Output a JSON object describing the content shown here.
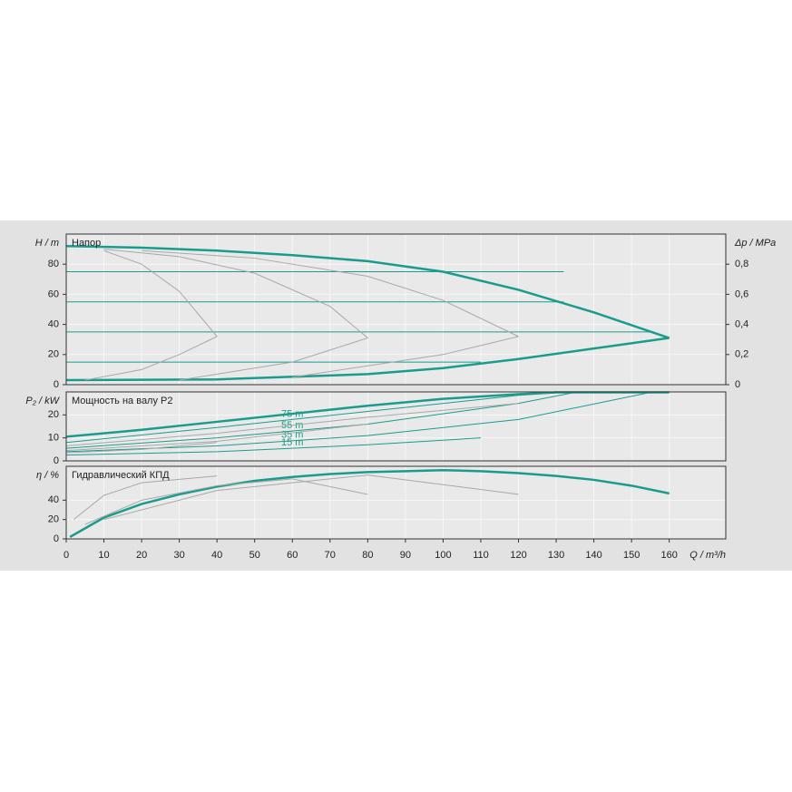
{
  "chart_data": [
    {
      "type": "line",
      "y_label": "H / m",
      "title": "Напор",
      "y2_label": "Δp / MPa",
      "ylim": [
        0,
        100
      ],
      "yticks": [
        0,
        20,
        40,
        60,
        80
      ],
      "y2lim": [
        0,
        1
      ],
      "y2ticks": [
        0,
        {
          "value": 0.2,
          "label": "0,2"
        },
        {
          "value": 0.4,
          "label": "0,4"
        },
        {
          "value": 0.6,
          "label": "0,6"
        },
        {
          "value": 0.8,
          "label": "0,8"
        }
      ],
      "grid": true,
      "series": [
        {
          "color": "#1a9c8c",
          "width": 2.5,
          "x": [
            0,
            20,
            40,
            60,
            80,
            100,
            120,
            140,
            160
          ],
          "values": [
            92,
            91,
            89,
            86,
            82,
            75,
            63,
            48,
            31
          ]
        },
        {
          "color": "#1a9c8c",
          "width": 2.5,
          "x": [
            0,
            40,
            80,
            100,
            120,
            140,
            160
          ],
          "values": [
            3,
            3.5,
            7,
            11,
            17,
            24,
            31
          ]
        },
        {
          "color": "#1a9c8c",
          "width": 1,
          "x": [
            0,
            132
          ],
          "values": [
            75,
            75
          ]
        },
        {
          "color": "#1a9c8c",
          "width": 1,
          "x": [
            0,
            132
          ],
          "values": [
            55,
            55
          ]
        },
        {
          "color": "#1a9c8c",
          "width": 1,
          "x": [
            0,
            155
          ],
          "values": [
            35,
            35
          ]
        },
        {
          "color": "#1a9c8c",
          "width": 1,
          "x": [
            0,
            110
          ],
          "values": [
            15,
            15
          ]
        },
        {
          "color": "#a8a8a8",
          "width": 1,
          "x": [
            10,
            20,
            30,
            40
          ],
          "values": [
            89,
            80,
            62,
            32
          ]
        },
        {
          "color": "#a8a8a8",
          "width": 1,
          "x": [
            10,
            30,
            50,
            70,
            80
          ],
          "values": [
            90,
            85,
            74,
            52,
            31
          ]
        },
        {
          "color": "#a8a8a8",
          "width": 1,
          "x": [
            20,
            50,
            80,
            100,
            120
          ],
          "values": [
            89,
            84,
            72,
            56,
            32
          ]
        },
        {
          "color": "#a8a8a8",
          "width": 1,
          "x": [
            5,
            20,
            30,
            40
          ],
          "values": [
            3,
            10,
            20,
            32
          ]
        },
        {
          "color": "#a8a8a8",
          "width": 1,
          "x": [
            30,
            60,
            80
          ],
          "values": [
            3,
            15,
            31
          ]
        },
        {
          "color": "#a8a8a8",
          "width": 1,
          "x": [
            60,
            100,
            120
          ],
          "values": [
            5,
            20,
            32
          ]
        }
      ]
    },
    {
      "type": "line",
      "y_label": "P₂ / kW",
      "title": "Мощность на валу P2",
      "ylim": [
        0,
        30
      ],
      "yticks": [
        0,
        10,
        20
      ],
      "grid": true,
      "series": [
        {
          "color": "#1a9c8c",
          "width": 2.5,
          "x": [
            0,
            20,
            40,
            60,
            80,
            100,
            120,
            130,
            160
          ],
          "values": [
            10.5,
            13.5,
            17,
            20.5,
            24,
            27,
            29,
            29.8,
            29.8
          ]
        },
        {
          "name": "75 m",
          "color": "#1a9c8c",
          "width": 1,
          "x": [
            0,
            40,
            80,
            120,
            132
          ],
          "values": [
            8,
            14.5,
            21.5,
            28.5,
            29.8
          ]
        },
        {
          "name": "55 m",
          "color": "#1a9c8c",
          "width": 1,
          "x": [
            0,
            40,
            80,
            120,
            135
          ],
          "values": [
            5.5,
            10,
            16,
            25,
            29.8
          ]
        },
        {
          "name": "35 m",
          "color": "#1a9c8c",
          "width": 1,
          "x": [
            0,
            40,
            80,
            120,
            155
          ],
          "values": [
            4,
            6.5,
            11,
            18,
            29.8
          ]
        },
        {
          "name": "15 m",
          "color": "#1a9c8c",
          "width": 1,
          "x": [
            0,
            40,
            80,
            110
          ],
          "values": [
            2.5,
            4,
            7,
            10
          ]
        },
        {
          "color": "#a8a8a8",
          "width": 1,
          "x": [
            0,
            40,
            80,
            120
          ],
          "values": [
            6.5,
            12,
            19,
            25
          ]
        },
        {
          "color": "#a8a8a8",
          "width": 1,
          "x": [
            0,
            40,
            80
          ],
          "values": [
            4.5,
            8.5,
            16
          ]
        },
        {
          "color": "#a8a8a8",
          "width": 1,
          "x": [
            0,
            20,
            40
          ],
          "values": [
            3.5,
            5,
            8
          ]
        }
      ]
    },
    {
      "type": "line",
      "y_label": "η / %",
      "title": "Гидравлический КПД",
      "x_label": "Q / m³/h",
      "xlim": [
        0,
        175
      ],
      "xticks": [
        0,
        10,
        20,
        30,
        40,
        50,
        60,
        70,
        80,
        90,
        100,
        110,
        120,
        130,
        140,
        150,
        160
      ],
      "ylim": [
        0,
        75
      ],
      "yticks": [
        0,
        20,
        40
      ],
      "grid": true,
      "series": [
        {
          "color": "#1a9c8c",
          "width": 2.5,
          "x": [
            1,
            10,
            20,
            30,
            40,
            50,
            60,
            70,
            80,
            90,
            100,
            110,
            120,
            130,
            140,
            150,
            160
          ],
          "values": [
            2,
            22,
            36,
            46,
            54,
            60,
            64,
            67,
            69,
            70,
            71,
            70,
            68,
            65,
            61,
            55,
            47
          ]
        },
        {
          "color": "#a8a8a8",
          "width": 1,
          "x": [
            2,
            10,
            20,
            40
          ],
          "values": [
            20,
            45,
            58,
            65
          ]
        },
        {
          "color": "#a8a8a8",
          "width": 1,
          "x": [
            5,
            20,
            40,
            60,
            80
          ],
          "values": [
            15,
            40,
            55,
            62,
            46
          ]
        },
        {
          "color": "#a8a8a8",
          "width": 1,
          "x": [
            10,
            40,
            80,
            120
          ],
          "values": [
            20,
            50,
            66,
            46
          ]
        }
      ]
    }
  ]
}
